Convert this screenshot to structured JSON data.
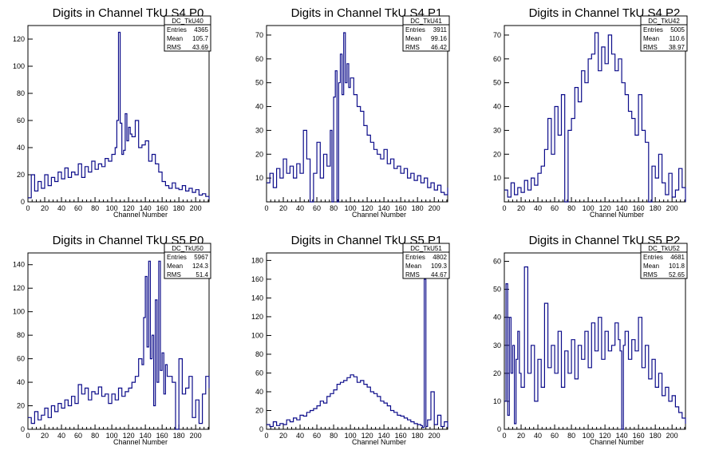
{
  "colors": {
    "line": "#0c0c8a",
    "axis": "#000000",
    "background": "#ffffff"
  },
  "chart_data": [
    {
      "type": "line",
      "title": "Digits in Channel TkU S4 P0",
      "xlabel": "Channel Number",
      "ylabel": "",
      "xlim": [
        0,
        216
      ],
      "ylim": [
        0,
        130
      ],
      "xticks": [
        0,
        20,
        40,
        60,
        80,
        100,
        120,
        140,
        160,
        180,
        200
      ],
      "yticks": [
        0,
        20,
        40,
        60,
        80,
        100,
        120
      ],
      "stats": {
        "name": "DC_TkU40",
        "rows": [
          [
            "Entries",
            "4365"
          ],
          [
            "Mean",
            "105.7"
          ],
          [
            "RMS",
            "43.69"
          ]
        ]
      },
      "series": [
        {
          "x": [
            0,
            4,
            8,
            12,
            16,
            20,
            24,
            28,
            32,
            36,
            40,
            44,
            48,
            52,
            56,
            60,
            64,
            68,
            72,
            76,
            80,
            84,
            88,
            92,
            96,
            100,
            104,
            106,
            108,
            110,
            112,
            114,
            116,
            118,
            120,
            122,
            124,
            128,
            132,
            136,
            140,
            144,
            148,
            152,
            156,
            160,
            164,
            168,
            172,
            176,
            180,
            184,
            188,
            192,
            196,
            200,
            204,
            208,
            212,
            216
          ],
          "y": [
            3,
            20,
            8,
            15,
            10,
            20,
            12,
            18,
            15,
            22,
            17,
            25,
            18,
            22,
            20,
            28,
            18,
            26,
            22,
            30,
            24,
            28,
            26,
            32,
            30,
            35,
            40,
            60,
            125,
            58,
            35,
            38,
            65,
            45,
            55,
            50,
            48,
            60,
            40,
            42,
            45,
            30,
            35,
            28,
            22,
            15,
            12,
            10,
            14,
            10,
            9,
            12,
            8,
            10,
            7,
            9,
            5,
            6,
            4,
            2
          ]
        }
      ]
    },
    {
      "type": "line",
      "title": "Digits in Channel TkU S4 P1",
      "xlabel": "Channel Number",
      "ylabel": "",
      "xlim": [
        0,
        216
      ],
      "ylim": [
        0,
        74
      ],
      "xticks": [
        0,
        20,
        40,
        60,
        80,
        100,
        120,
        140,
        160,
        180,
        200
      ],
      "yticks": [
        10,
        20,
        30,
        40,
        50,
        60,
        70
      ],
      "stats": {
        "name": "DC_TkU41",
        "rows": [
          [
            "Entries",
            "3911"
          ],
          [
            "Mean",
            "99.16"
          ],
          [
            "RMS",
            "46.42"
          ]
        ]
      },
      "series": [
        {
          "x": [
            0,
            4,
            8,
            12,
            16,
            20,
            24,
            28,
            32,
            36,
            40,
            44,
            48,
            52,
            56,
            60,
            64,
            68,
            72,
            76,
            78,
            80,
            82,
            84,
            86,
            88,
            90,
            92,
            94,
            96,
            98,
            100,
            104,
            108,
            112,
            116,
            120,
            124,
            128,
            132,
            136,
            140,
            144,
            148,
            152,
            156,
            160,
            164,
            168,
            172,
            176,
            180,
            184,
            188,
            192,
            196,
            200,
            204,
            208,
            212,
            216
          ],
          "y": [
            8,
            12,
            6,
            14,
            10,
            18,
            12,
            15,
            10,
            16,
            12,
            30,
            18,
            0,
            12,
            25,
            10,
            20,
            15,
            30,
            0,
            44,
            55,
            0,
            50,
            62,
            45,
            71,
            50,
            58,
            48,
            52,
            45,
            40,
            38,
            32,
            28,
            25,
            22,
            20,
            18,
            22,
            16,
            18,
            14,
            15,
            12,
            14,
            10,
            12,
            9,
            11,
            8,
            10,
            6,
            8,
            5,
            7,
            4,
            3,
            6
          ]
        }
      ]
    },
    {
      "type": "line",
      "title": "Digits in Channel TkU S4 P2",
      "xlabel": "Channel Number",
      "ylabel": "",
      "xlim": [
        0,
        216
      ],
      "ylim": [
        0,
        74
      ],
      "xticks": [
        0,
        20,
        40,
        60,
        80,
        100,
        120,
        140,
        160,
        180,
        200
      ],
      "yticks": [
        10,
        20,
        30,
        40,
        50,
        60,
        70
      ],
      "stats": {
        "name": "DC_TkU42",
        "rows": [
          [
            "Entries",
            "5005"
          ],
          [
            "Mean",
            "110.6"
          ],
          [
            "RMS",
            "38.97"
          ]
        ]
      },
      "series": [
        {
          "x": [
            0,
            4,
            8,
            12,
            16,
            20,
            24,
            28,
            32,
            36,
            40,
            44,
            48,
            52,
            56,
            60,
            64,
            68,
            72,
            76,
            80,
            84,
            88,
            92,
            96,
            100,
            104,
            108,
            112,
            116,
            120,
            124,
            128,
            132,
            136,
            140,
            144,
            148,
            152,
            156,
            160,
            164,
            168,
            172,
            176,
            180,
            184,
            188,
            192,
            196,
            200,
            204,
            208,
            212,
            216
          ],
          "y": [
            5,
            2,
            8,
            3,
            6,
            4,
            9,
            5,
            10,
            7,
            12,
            15,
            22,
            35,
            20,
            40,
            28,
            45,
            0,
            30,
            35,
            48,
            42,
            55,
            50,
            60,
            62,
            71,
            55,
            65,
            58,
            70,
            62,
            55,
            60,
            50,
            45,
            38,
            35,
            28,
            45,
            30,
            25,
            0,
            15,
            10,
            20,
            8,
            3,
            12,
            2,
            5,
            14,
            6,
            0
          ]
        }
      ]
    },
    {
      "type": "line",
      "title": "Digits in Channel TkU S5 P0",
      "xlabel": "Channel Number",
      "ylabel": "",
      "xlim": [
        0,
        216
      ],
      "ylim": [
        0,
        150
      ],
      "xticks": [
        0,
        20,
        40,
        60,
        80,
        100,
        120,
        140,
        160,
        180,
        200
      ],
      "yticks": [
        0,
        20,
        40,
        60,
        80,
        100,
        120,
        140
      ],
      "stats": {
        "name": "DC_TkU50",
        "rows": [
          [
            "Entries",
            "5967"
          ],
          [
            "Mean",
            "124.3"
          ],
          [
            "RMS",
            "51.4"
          ]
        ]
      },
      "series": [
        {
          "x": [
            0,
            4,
            8,
            12,
            16,
            20,
            24,
            28,
            32,
            36,
            40,
            44,
            48,
            52,
            56,
            60,
            64,
            68,
            72,
            76,
            80,
            84,
            88,
            92,
            96,
            100,
            104,
            108,
            112,
            116,
            120,
            124,
            128,
            132,
            136,
            138,
            140,
            142,
            144,
            146,
            148,
            150,
            152,
            154,
            156,
            158,
            160,
            162,
            164,
            166,
            168,
            172,
            176,
            180,
            184,
            188,
            192,
            196,
            200,
            204,
            208,
            212,
            216
          ],
          "y": [
            10,
            5,
            15,
            8,
            12,
            18,
            10,
            20,
            15,
            22,
            18,
            25,
            20,
            28,
            22,
            38,
            30,
            35,
            25,
            32,
            30,
            36,
            28,
            30,
            22,
            30,
            25,
            35,
            28,
            32,
            35,
            40,
            45,
            60,
            55,
            95,
            130,
            70,
            143,
            60,
            80,
            20,
            110,
            40,
            143,
            50,
            65,
            30,
            55,
            45,
            45,
            40,
            0,
            60,
            30,
            35,
            45,
            10,
            25,
            5,
            30,
            45,
            35
          ]
        }
      ]
    },
    {
      "type": "line",
      "title": "Digits in Channel TkU S5 P1",
      "xlabel": "Channel Number",
      "ylabel": "",
      "xlim": [
        0,
        216
      ],
      "ylim": [
        0,
        188
      ],
      "xticks": [
        0,
        20,
        40,
        60,
        80,
        100,
        120,
        140,
        160,
        180,
        200
      ],
      "yticks": [
        0,
        20,
        40,
        60,
        80,
        100,
        120,
        140,
        160,
        180
      ],
      "stats": {
        "name": "DC_TkU51",
        "rows": [
          [
            "Entries",
            "4802"
          ],
          [
            "Mean",
            "109.3"
          ],
          [
            "RMS",
            "44.67"
          ]
        ]
      },
      "series": [
        {
          "x": [
            0,
            4,
            8,
            12,
            16,
            20,
            24,
            28,
            32,
            36,
            40,
            44,
            48,
            52,
            56,
            60,
            64,
            68,
            72,
            76,
            80,
            84,
            88,
            92,
            96,
            100,
            104,
            108,
            112,
            116,
            120,
            124,
            128,
            132,
            136,
            140,
            144,
            148,
            152,
            156,
            160,
            164,
            168,
            172,
            176,
            180,
            184,
            186,
            188,
            190,
            192,
            196,
            200,
            204,
            208,
            212,
            216
          ],
          "y": [
            5,
            3,
            8,
            4,
            6,
            5,
            10,
            8,
            12,
            10,
            15,
            14,
            18,
            20,
            22,
            25,
            30,
            28,
            35,
            38,
            42,
            48,
            50,
            52,
            55,
            58,
            56,
            50,
            52,
            48,
            45,
            40,
            38,
            35,
            30,
            28,
            25,
            20,
            18,
            15,
            14,
            12,
            10,
            8,
            6,
            5,
            4,
            2,
            160,
            3,
            10,
            40,
            5,
            15,
            3,
            8,
            2
          ]
        }
      ]
    },
    {
      "type": "line",
      "title": "Digits in Channel TkU S5 P2",
      "xlabel": "Channel Number",
      "ylabel": "",
      "xlim": [
        0,
        216
      ],
      "ylim": [
        0,
        63
      ],
      "xticks": [
        0,
        20,
        40,
        60,
        80,
        100,
        120,
        140,
        160,
        180,
        200
      ],
      "yticks": [
        0,
        10,
        20,
        30,
        40,
        50,
        60
      ],
      "stats": {
        "name": "DC_TkU52",
        "rows": [
          [
            "Entries",
            "4681"
          ],
          [
            "Mean",
            "101.8"
          ],
          [
            "RMS",
            "52.65"
          ]
        ]
      },
      "series": [
        {
          "x": [
            0,
            2,
            4,
            6,
            8,
            10,
            12,
            14,
            16,
            18,
            20,
            24,
            28,
            32,
            36,
            40,
            44,
            48,
            52,
            56,
            60,
            64,
            68,
            72,
            76,
            80,
            84,
            88,
            92,
            96,
            100,
            104,
            108,
            112,
            116,
            120,
            124,
            128,
            132,
            136,
            138,
            140,
            142,
            144,
            148,
            152,
            156,
            160,
            164,
            168,
            172,
            176,
            180,
            184,
            188,
            192,
            196,
            200,
            204,
            208,
            212,
            216
          ],
          "y": [
            10,
            52,
            5,
            40,
            20,
            30,
            2,
            25,
            35,
            20,
            15,
            58,
            20,
            30,
            10,
            25,
            15,
            45,
            22,
            30,
            20,
            35,
            15,
            28,
            20,
            32,
            18,
            30,
            25,
            35,
            22,
            38,
            28,
            40,
            25,
            35,
            28,
            30,
            38,
            32,
            28,
            0,
            30,
            35,
            25,
            32,
            28,
            40,
            22,
            30,
            18,
            25,
            15,
            20,
            12,
            15,
            10,
            12,
            8,
            6,
            4,
            2
          ]
        }
      ]
    }
  ]
}
